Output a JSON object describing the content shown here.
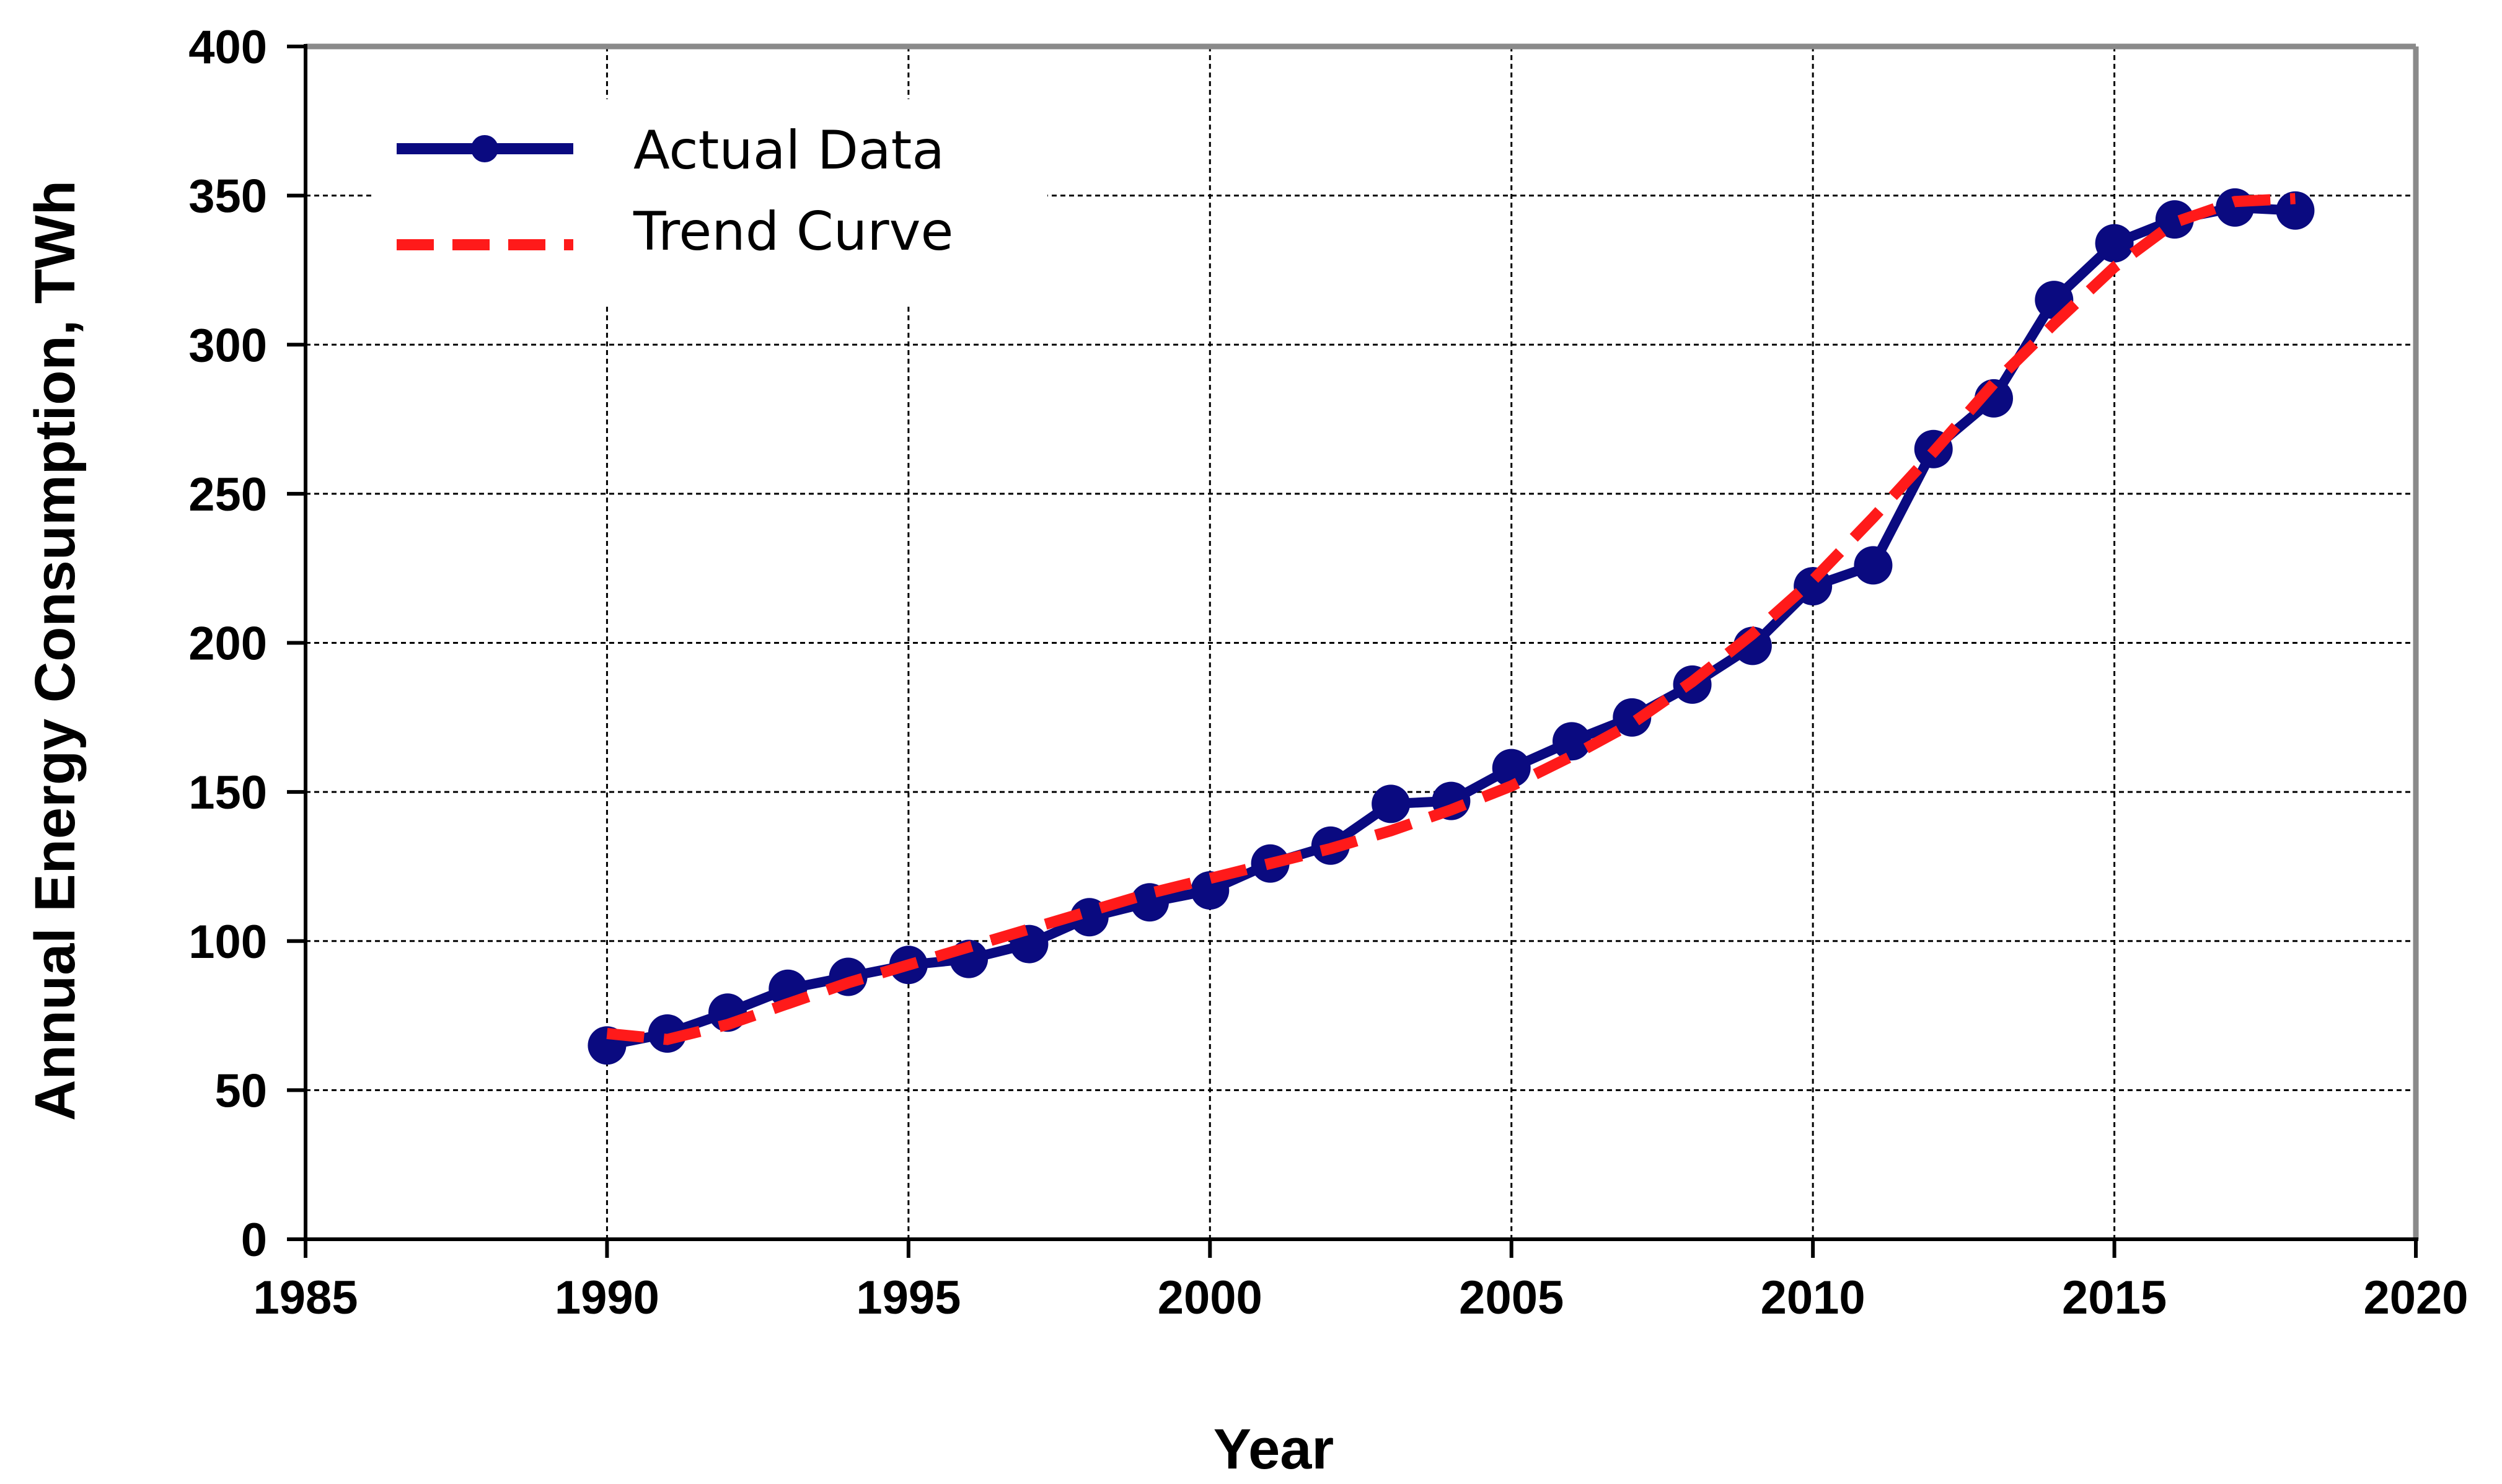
{
  "chart_data": {
    "type": "line",
    "title": "",
    "xlabel": "Year",
    "ylabel": "Annual Energy Consumption, TWh",
    "xlim": [
      1985,
      2020
    ],
    "ylim": [
      0,
      400
    ],
    "xticks": [
      1985,
      1990,
      1995,
      2000,
      2005,
      2010,
      2015,
      2020
    ],
    "yticks": [
      0,
      50,
      100,
      150,
      200,
      250,
      300,
      350,
      400
    ],
    "grid": true,
    "legend_position": "top-left",
    "series": [
      {
        "name": "Actual Data",
        "style": "solid-with-markers",
        "color": "#0a0a80",
        "x": [
          1990,
          1991,
          1992,
          1993,
          1994,
          1995,
          1996,
          1997,
          1998,
          1999,
          2000,
          2001,
          2002,
          2003,
          2004,
          2005,
          2006,
          2007,
          2008,
          2009,
          2010,
          2011,
          2012,
          2013,
          2014,
          2015,
          2016,
          2017,
          2018
        ],
        "values": [
          65,
          69,
          76,
          84,
          88,
          92,
          94,
          99,
          108,
          113,
          117,
          126,
          132,
          146,
          147,
          158,
          167,
          175,
          186,
          199,
          219,
          226,
          265,
          282,
          315,
          334,
          342,
          346,
          345
        ]
      },
      {
        "name": "Trend Curve",
        "style": "dashed",
        "color": "#ff1a1a",
        "x": [
          1990,
          1991,
          1992,
          1993,
          1994,
          1995,
          1996,
          1997,
          1998,
          1999,
          2000,
          2001,
          2002,
          2003,
          2004,
          2005,
          2006,
          2007,
          2008,
          2009,
          2010,
          2011,
          2012,
          2013,
          2014,
          2015,
          2016,
          2017,
          2018
        ],
        "values": [
          69,
          67,
          72,
          79,
          86,
          92,
          98,
          104,
          110,
          116,
          121,
          126,
          131,
          137,
          144,
          152,
          162,
          173,
          187,
          203,
          221,
          242,
          264,
          287,
          307,
          326,
          341,
          348,
          349
        ]
      }
    ]
  }
}
